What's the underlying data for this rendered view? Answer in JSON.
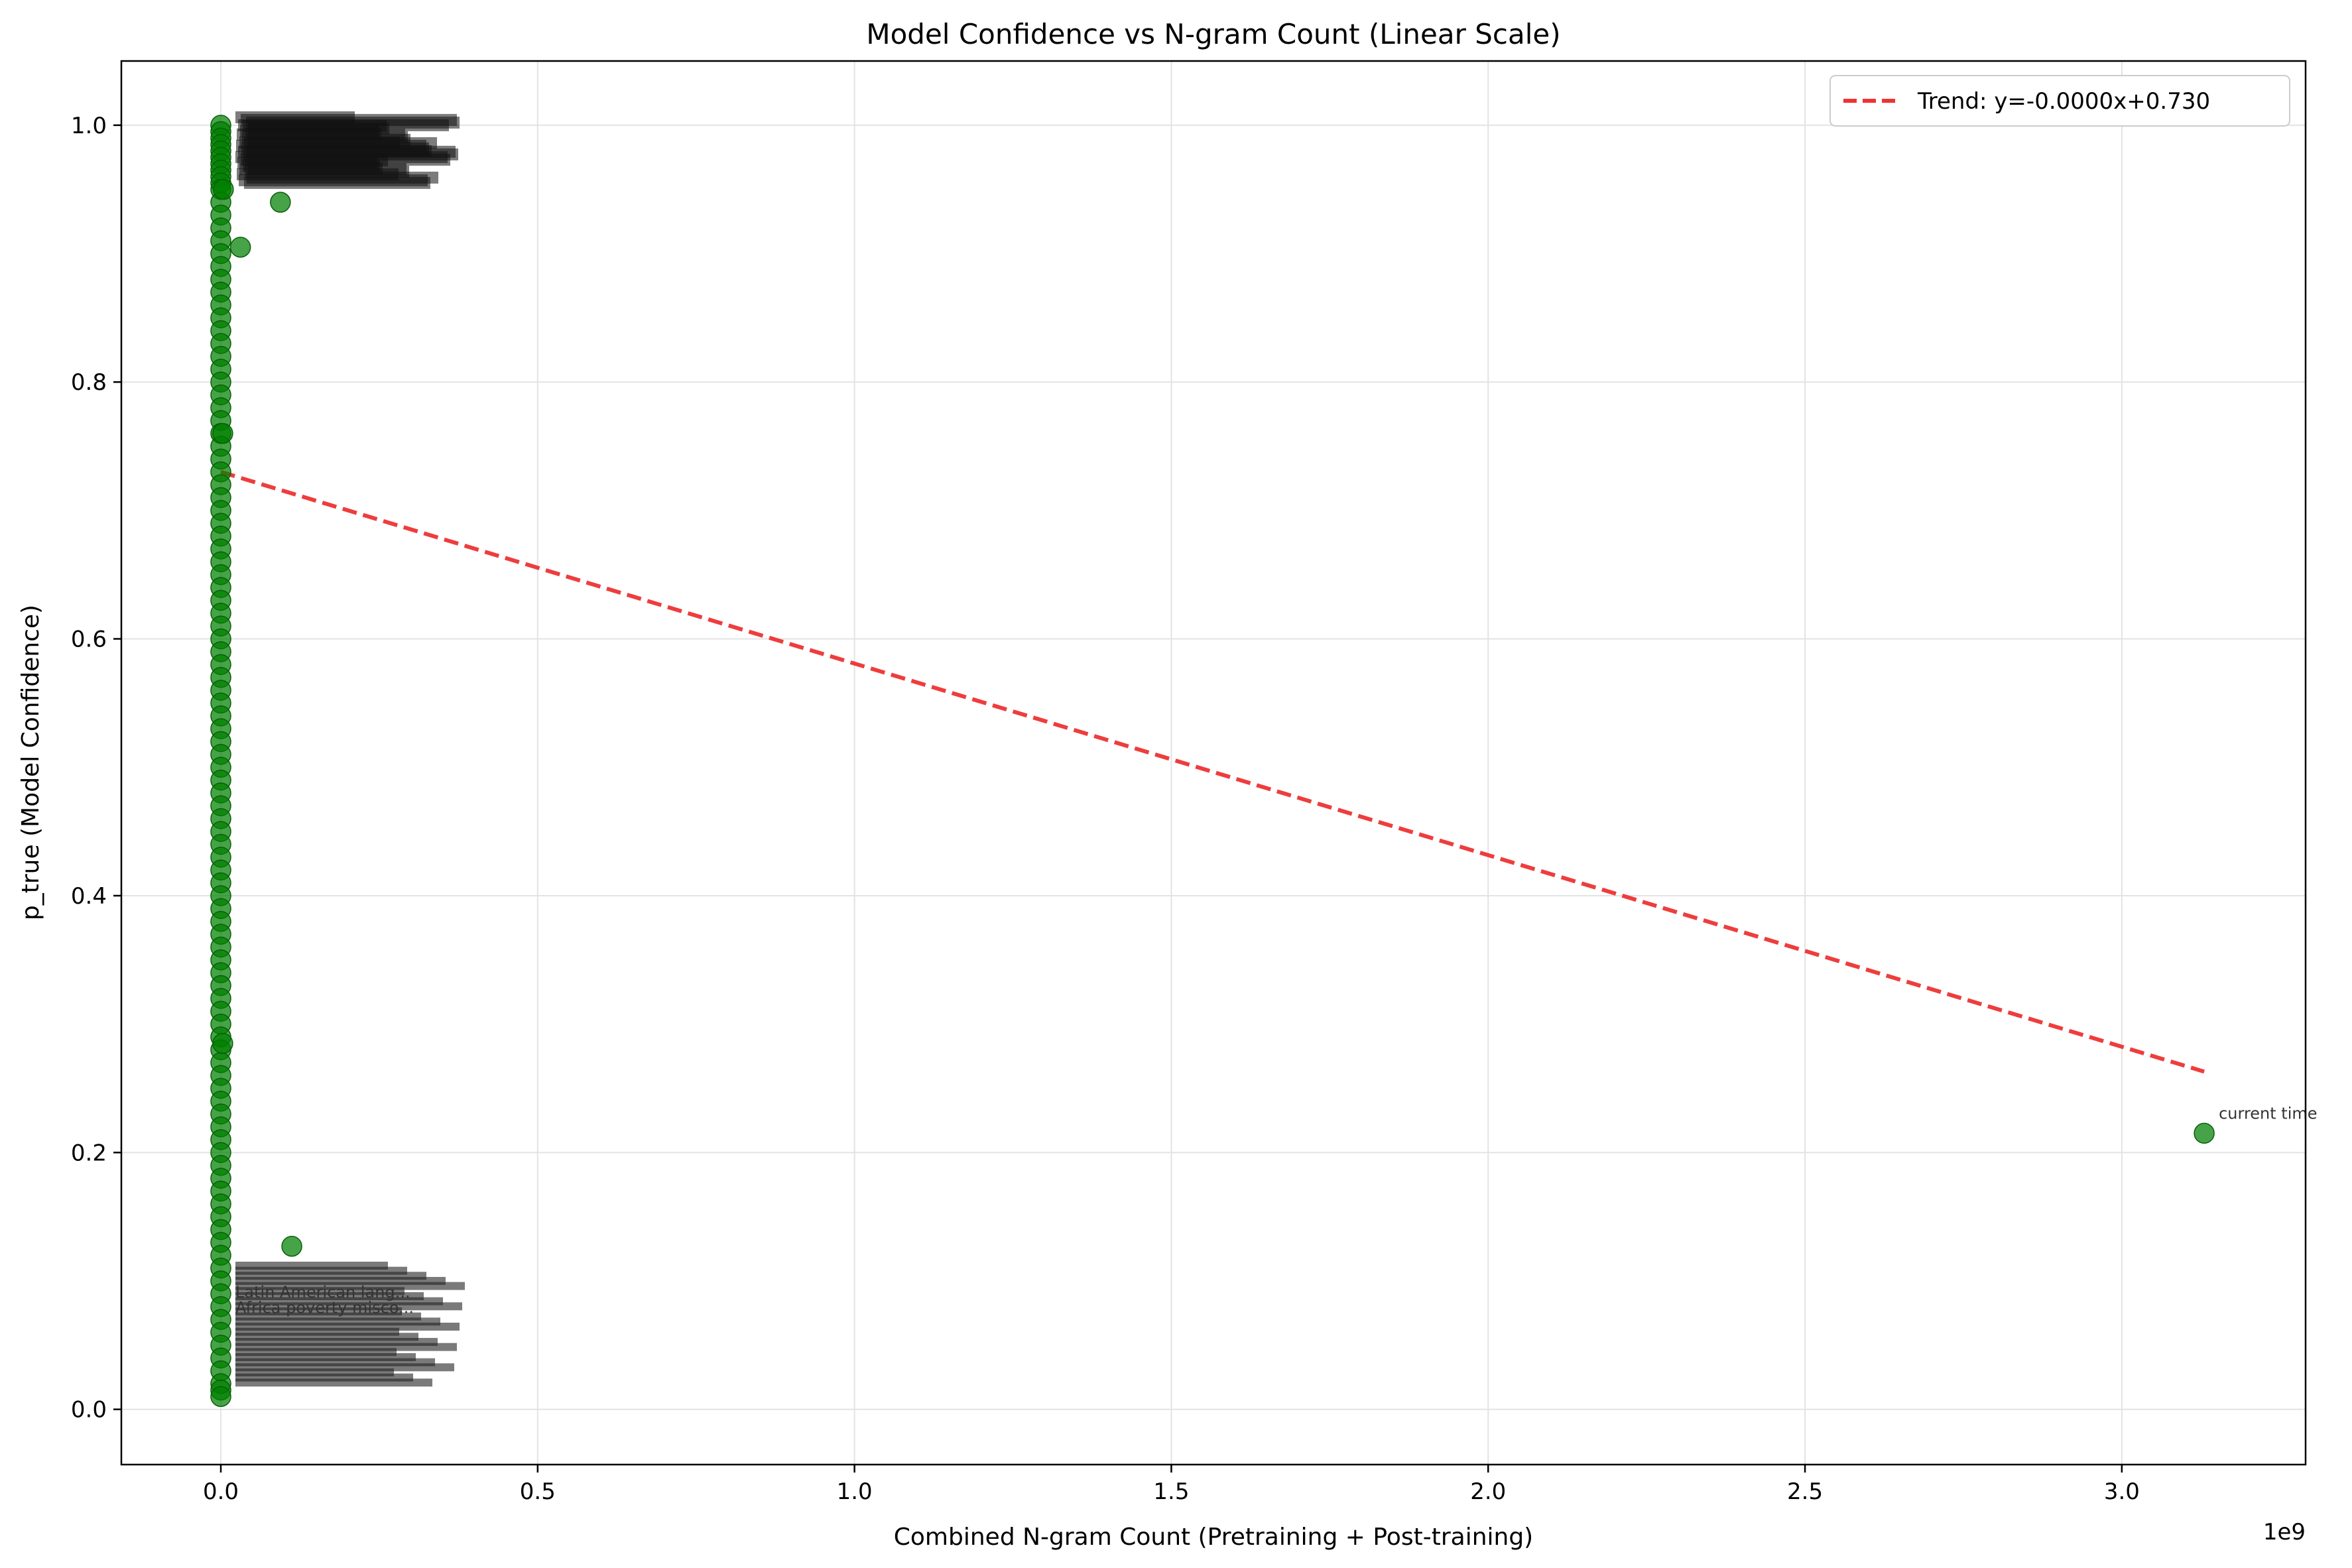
{
  "chart_data": {
    "type": "scatter",
    "title": "Model Confidence vs N-gram Count (Linear Scale)",
    "xlabel": "Combined N-gram Count (Pretraining + Post-training)",
    "ylabel": "p_true (Model Confidence)",
    "x_offset_label": "1e9",
    "xlim": [
      -0.157,
      3.29
    ],
    "ylim": [
      -0.043,
      1.05
    ],
    "x_ticks": [
      0.0,
      0.5,
      1.0,
      1.5,
      2.0,
      2.5,
      3.0
    ],
    "x_tick_labels": [
      "0.0",
      "0.5",
      "1.0",
      "1.5",
      "2.0",
      "2.5",
      "3.0"
    ],
    "y_ticks": [
      0.0,
      0.2,
      0.4,
      0.6,
      0.8,
      1.0
    ],
    "y_tick_labels": [
      "0.0",
      "0.2",
      "0.4",
      "0.6",
      "0.8",
      "1.0"
    ],
    "grid": true,
    "legend_position": "top-right",
    "point_color": "#008000",
    "trend_color": "#ee3333",
    "points": [
      {
        "x": 0.0,
        "y": 1.0
      },
      {
        "x": 0.0,
        "y": 0.995
      },
      {
        "x": 0.0,
        "y": 0.99
      },
      {
        "x": 0.0,
        "y": 0.985
      },
      {
        "x": 0.0,
        "y": 0.98
      },
      {
        "x": 0.0,
        "y": 0.975
      },
      {
        "x": 0.0,
        "y": 0.97
      },
      {
        "x": 0.0,
        "y": 0.965
      },
      {
        "x": 0.0,
        "y": 0.96
      },
      {
        "x": 0.0,
        "y": 0.955
      },
      {
        "x": 0.0,
        "y": 0.95
      },
      {
        "x": 0.0,
        "y": 0.94
      },
      {
        "x": 0.0,
        "y": 0.93
      },
      {
        "x": 0.0,
        "y": 0.92
      },
      {
        "x": 0.0,
        "y": 0.91
      },
      {
        "x": 0.0,
        "y": 0.9
      },
      {
        "x": 0.0,
        "y": 0.89
      },
      {
        "x": 0.0,
        "y": 0.88
      },
      {
        "x": 0.0,
        "y": 0.87
      },
      {
        "x": 0.0,
        "y": 0.86
      },
      {
        "x": 0.0,
        "y": 0.85
      },
      {
        "x": 0.0,
        "y": 0.84
      },
      {
        "x": 0.0,
        "y": 0.83
      },
      {
        "x": 0.0,
        "y": 0.82
      },
      {
        "x": 0.0,
        "y": 0.81
      },
      {
        "x": 0.0,
        "y": 0.8
      },
      {
        "x": 0.0,
        "y": 0.79
      },
      {
        "x": 0.0,
        "y": 0.78
      },
      {
        "x": 0.0,
        "y": 0.77
      },
      {
        "x": 0.0,
        "y": 0.76
      },
      {
        "x": 0.0,
        "y": 0.75
      },
      {
        "x": 0.0,
        "y": 0.74
      },
      {
        "x": 0.0,
        "y": 0.73
      },
      {
        "x": 0.0,
        "y": 0.72
      },
      {
        "x": 0.0,
        "y": 0.71
      },
      {
        "x": 0.0,
        "y": 0.7
      },
      {
        "x": 0.0,
        "y": 0.69
      },
      {
        "x": 0.0,
        "y": 0.68
      },
      {
        "x": 0.0,
        "y": 0.67
      },
      {
        "x": 0.0,
        "y": 0.66
      },
      {
        "x": 0.0,
        "y": 0.65
      },
      {
        "x": 0.0,
        "y": 0.64
      },
      {
        "x": 0.0,
        "y": 0.63
      },
      {
        "x": 0.0,
        "y": 0.62
      },
      {
        "x": 0.0,
        "y": 0.61
      },
      {
        "x": 0.0,
        "y": 0.6
      },
      {
        "x": 0.0,
        "y": 0.59
      },
      {
        "x": 0.0,
        "y": 0.58
      },
      {
        "x": 0.0,
        "y": 0.57
      },
      {
        "x": 0.0,
        "y": 0.56
      },
      {
        "x": 0.0,
        "y": 0.55
      },
      {
        "x": 0.0,
        "y": 0.54
      },
      {
        "x": 0.0,
        "y": 0.53
      },
      {
        "x": 0.0,
        "y": 0.52
      },
      {
        "x": 0.0,
        "y": 0.51
      },
      {
        "x": 0.0,
        "y": 0.5
      },
      {
        "x": 0.0,
        "y": 0.49
      },
      {
        "x": 0.0,
        "y": 0.48
      },
      {
        "x": 0.0,
        "y": 0.47
      },
      {
        "x": 0.0,
        "y": 0.46
      },
      {
        "x": 0.0,
        "y": 0.45
      },
      {
        "x": 0.0,
        "y": 0.44
      },
      {
        "x": 0.0,
        "y": 0.43
      },
      {
        "x": 0.0,
        "y": 0.42
      },
      {
        "x": 0.0,
        "y": 0.41
      },
      {
        "x": 0.0,
        "y": 0.4
      },
      {
        "x": 0.0,
        "y": 0.39
      },
      {
        "x": 0.0,
        "y": 0.38
      },
      {
        "x": 0.0,
        "y": 0.37
      },
      {
        "x": 0.0,
        "y": 0.36
      },
      {
        "x": 0.0,
        "y": 0.35
      },
      {
        "x": 0.0,
        "y": 0.34
      },
      {
        "x": 0.0,
        "y": 0.33
      },
      {
        "x": 0.0,
        "y": 0.32
      },
      {
        "x": 0.0,
        "y": 0.31
      },
      {
        "x": 0.0,
        "y": 0.3
      },
      {
        "x": 0.0,
        "y": 0.29
      },
      {
        "x": 0.0,
        "y": 0.28
      },
      {
        "x": 0.0,
        "y": 0.27
      },
      {
        "x": 0.0,
        "y": 0.26
      },
      {
        "x": 0.0,
        "y": 0.25
      },
      {
        "x": 0.0,
        "y": 0.24
      },
      {
        "x": 0.0,
        "y": 0.23
      },
      {
        "x": 0.0,
        "y": 0.22
      },
      {
        "x": 0.0,
        "y": 0.21
      },
      {
        "x": 0.0,
        "y": 0.2
      },
      {
        "x": 0.0,
        "y": 0.19
      },
      {
        "x": 0.0,
        "y": 0.18
      },
      {
        "x": 0.0,
        "y": 0.17
      },
      {
        "x": 0.0,
        "y": 0.16
      },
      {
        "x": 0.0,
        "y": 0.15
      },
      {
        "x": 0.0,
        "y": 0.14
      },
      {
        "x": 0.0,
        "y": 0.13
      },
      {
        "x": 0.0,
        "y": 0.12
      },
      {
        "x": 0.0,
        "y": 0.11
      },
      {
        "x": 0.0,
        "y": 0.1
      },
      {
        "x": 0.0,
        "y": 0.09
      },
      {
        "x": 0.0,
        "y": 0.08
      },
      {
        "x": 0.0,
        "y": 0.07
      },
      {
        "x": 0.0,
        "y": 0.06
      },
      {
        "x": 0.0,
        "y": 0.05
      },
      {
        "x": 0.0,
        "y": 0.04
      },
      {
        "x": 0.0,
        "y": 0.03
      },
      {
        "x": 0.0,
        "y": 0.02
      },
      {
        "x": 0.0,
        "y": 0.015
      },
      {
        "x": 0.0,
        "y": 0.01
      },
      {
        "x": 0.003,
        "y": 0.76
      },
      {
        "x": 0.004,
        "y": 0.95
      },
      {
        "x": 0.003,
        "y": 0.285
      },
      {
        "x": 0.031,
        "y": 0.905
      },
      {
        "x": 0.094,
        "y": 0.94
      },
      {
        "x": 0.112,
        "y": 0.127
      },
      {
        "x": 3.13,
        "y": 0.215
      }
    ],
    "trend": {
      "label": "Trend: y=-0.0000x+0.730",
      "x_start": 0.0,
      "y_start": 0.73,
      "x_end": 3.13,
      "y_end": 0.263
    },
    "annotations": [
      {
        "text": "current time",
        "x": 3.13,
        "y": 0.215
      }
    ],
    "annotation_clusters": {
      "top": {
        "x": 0.0,
        "y": 0.985,
        "count": 30
      },
      "bottom": {
        "x": 0.0,
        "y": 0.065,
        "count": 24,
        "visible_fragments": [
          "Latin American lang...",
          "Africa poverty misco...",
          "current time"
        ]
      }
    }
  }
}
